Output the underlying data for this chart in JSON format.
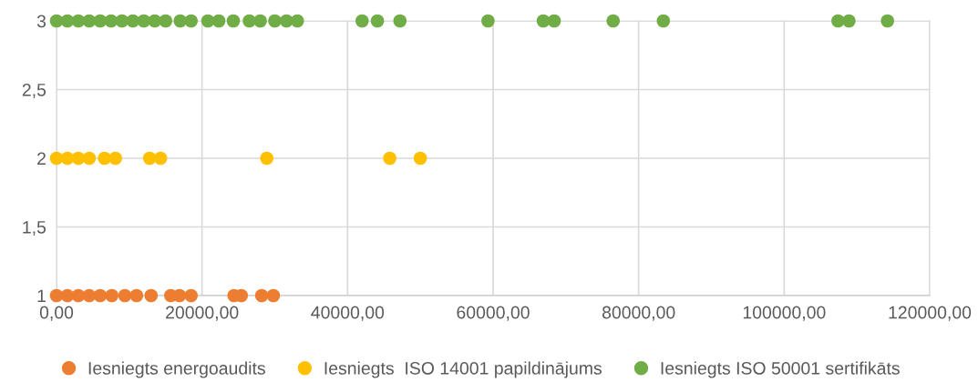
{
  "chart_data": {
    "type": "scatter",
    "marker": "circle",
    "grid": true,
    "legend": "bottom",
    "xlim": [
      0,
      120000
    ],
    "ylim": [
      1,
      3
    ],
    "xticks": [
      {
        "value": 0,
        "label": "0,00"
      },
      {
        "value": 20000,
        "label": "20000,00"
      },
      {
        "value": 40000,
        "label": "40000,00"
      },
      {
        "value": 60000,
        "label": "60000,00"
      },
      {
        "value": 80000,
        "label": "80000,00"
      },
      {
        "value": 100000,
        "label": "100000,00"
      },
      {
        "value": 120000,
        "label": "120000,00"
      }
    ],
    "yticks": [
      1,
      {
        "value": 1.5,
        "label": "1,5"
      },
      2,
      {
        "value": 2.5,
        "label": "2,5"
      },
      3
    ],
    "series": [
      {
        "name": "Iesniegts energoaudits",
        "color": "#ed7d31",
        "x": [
          0,
          1500,
          3000,
          4500,
          6000,
          7600,
          9400,
          11000,
          13000,
          15700,
          16900,
          18500,
          24400,
          25400,
          28200,
          29800
        ],
        "values": [
          1,
          1,
          1,
          1,
          1,
          1,
          1,
          1,
          1,
          1,
          1,
          1,
          1,
          1,
          1,
          1
        ]
      },
      {
        "name": "Iesniegts  ISO 14001 papildinājums",
        "color": "#ffc000",
        "x": [
          0,
          1500,
          3000,
          4500,
          6600,
          8100,
          12800,
          14300,
          28900,
          45800,
          50000
        ],
        "values": [
          2,
          2,
          2,
          2,
          2,
          2,
          2,
          2,
          2,
          2,
          2
        ]
      },
      {
        "name": "Iesniegts ISO 50001 sertifikāts",
        "color": "#70ad47",
        "x": [
          0,
          1500,
          3000,
          4500,
          6000,
          7500,
          9000,
          10500,
          12000,
          13500,
          15000,
          17000,
          18500,
          20800,
          22300,
          24300,
          26500,
          28000,
          30000,
          31600,
          33100,
          42000,
          44100,
          47200,
          59300,
          66900,
          68400,
          76500,
          83400,
          107400,
          108900,
          114200
        ],
        "values": [
          3,
          3,
          3,
          3,
          3,
          3,
          3,
          3,
          3,
          3,
          3,
          3,
          3,
          3,
          3,
          3,
          3,
          3,
          3,
          3,
          3,
          3,
          3,
          3,
          3,
          3,
          3,
          3,
          3,
          3,
          3,
          3
        ]
      }
    ]
  }
}
